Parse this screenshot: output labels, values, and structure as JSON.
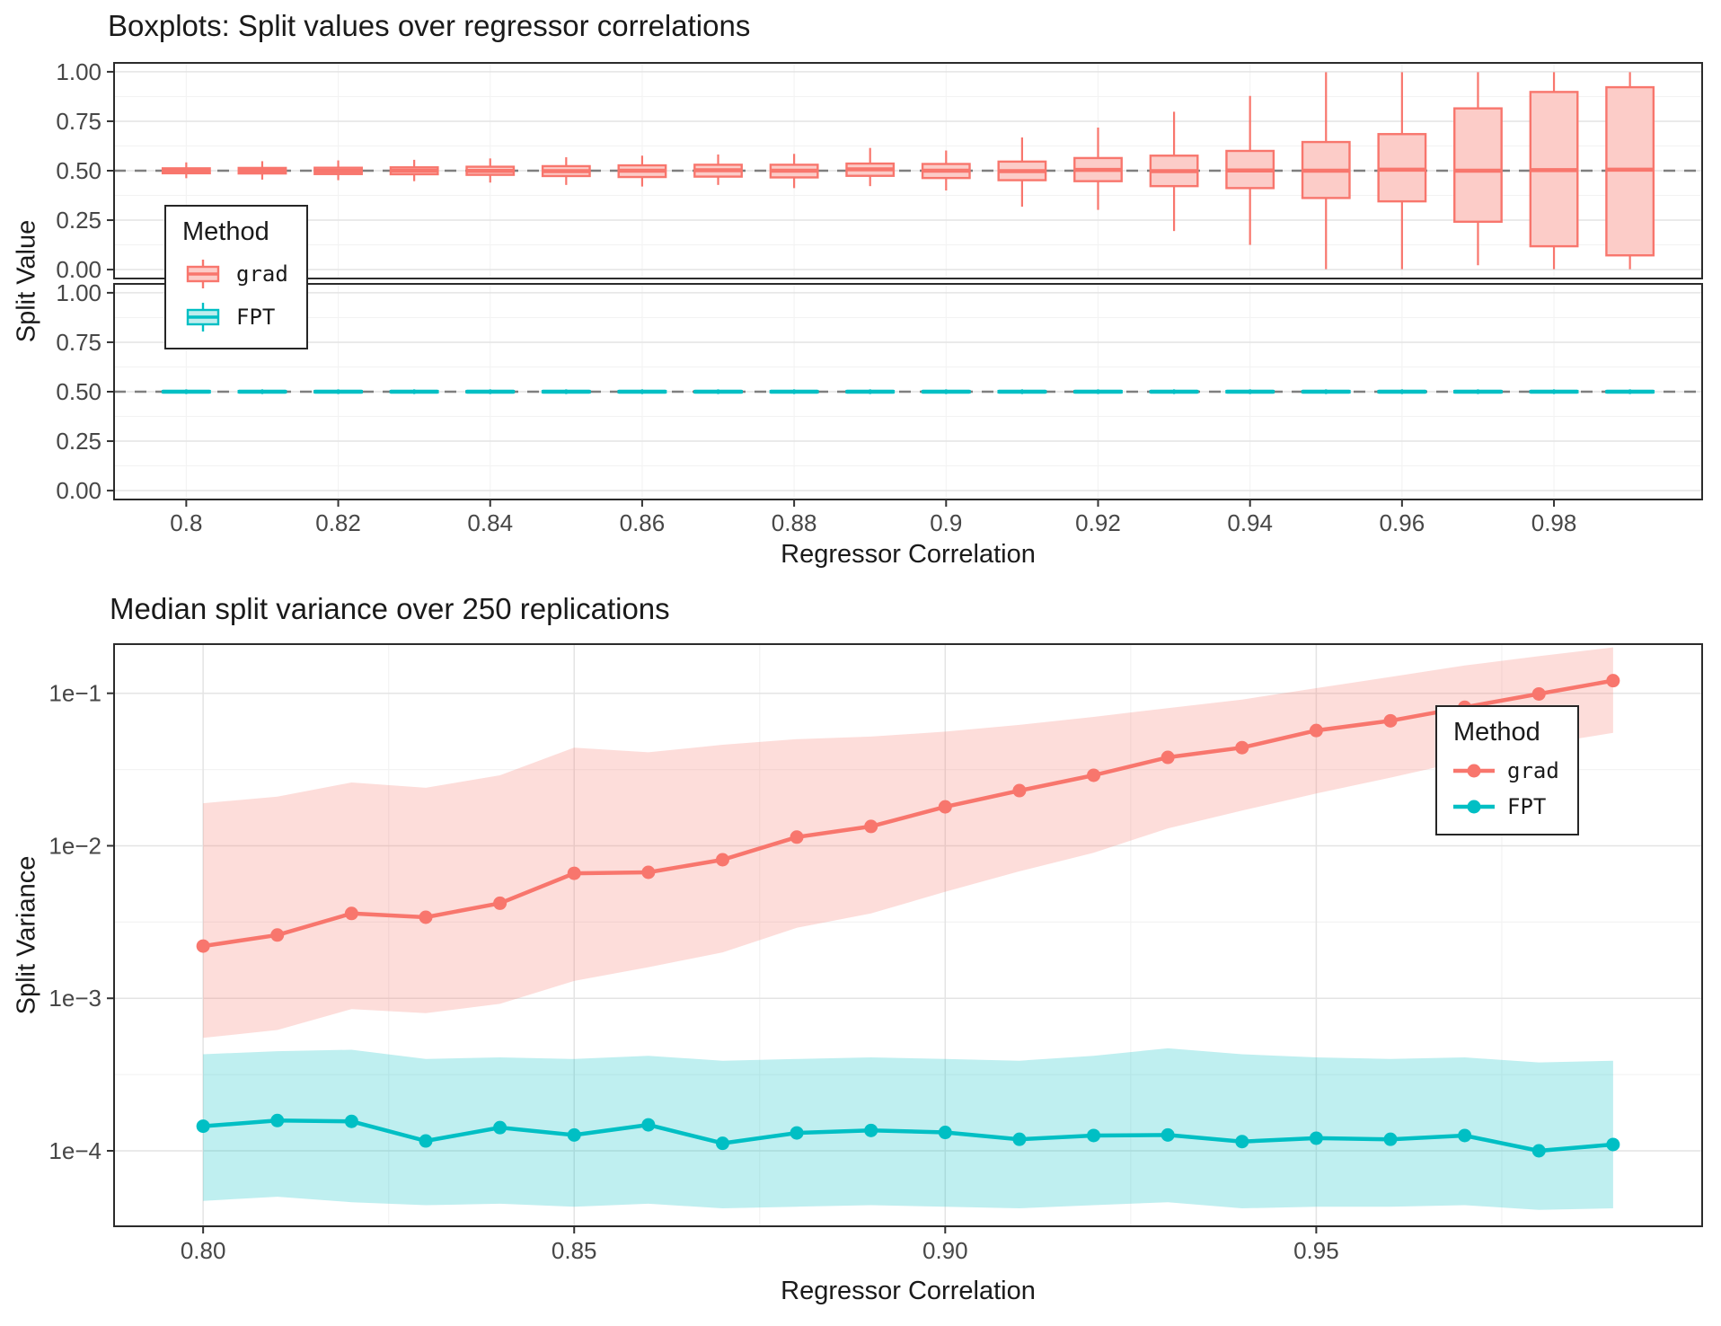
{
  "colors": {
    "grad": "#F8766D",
    "grad_fill": "#FCCCC8",
    "fpt": "#00BFC4",
    "fpt_fill": "#BFEDEE",
    "ref_line": "#7f7f7f",
    "grid_major": "#E4E4E4",
    "grid_minor": "#F3F3F3",
    "panel_border": "#2b2b2b",
    "axis_text": "#474747",
    "title_text": "#1a1a1a"
  },
  "chart_data": [
    {
      "type": "boxplot",
      "title": "Boxplots: Split values over regressor correlations",
      "xlabel": "Regressor Correlation",
      "ylabel": "Split Value",
      "legend": {
        "title": "Method",
        "items": [
          {
            "label": "grad"
          },
          {
            "label": "FPT"
          }
        ]
      },
      "reference_line": 0.5,
      "xlim": [
        0.7905,
        0.9995
      ],
      "ylim": [
        -0.045,
        1.045
      ],
      "box_width": 0.0062,
      "x_ticks": [
        0.8,
        0.82,
        0.84,
        0.86,
        0.88,
        0.9,
        0.92,
        0.94,
        0.96,
        0.98
      ],
      "x_tick_labels": [
        "0.8",
        "0.82",
        "0.84",
        "0.86",
        "0.88",
        "0.9",
        "0.92",
        "0.94",
        "0.96",
        "0.98"
      ],
      "y_ticks": [
        0,
        0.25,
        0.5,
        0.75,
        1
      ],
      "y_tick_labels": [
        "0.00",
        "0.25",
        "0.50",
        "0.75",
        "1.00"
      ],
      "y_minor": [
        0.125,
        0.375,
        0.625,
        0.875
      ],
      "x": [
        0.8,
        0.81,
        0.82,
        0.83,
        0.84,
        0.85,
        0.86,
        0.87,
        0.88,
        0.89,
        0.9,
        0.91,
        0.92,
        0.93,
        0.94,
        0.95,
        0.96,
        0.97,
        0.98,
        0.99
      ],
      "facets": [
        {
          "name": "grad",
          "color_key": "grad",
          "boxes": [
            [
              0.462,
              0.487,
              0.5,
              0.512,
              0.542
            ],
            [
              0.455,
              0.486,
              0.501,
              0.514,
              0.548
            ],
            [
              0.452,
              0.483,
              0.499,
              0.515,
              0.552
            ],
            [
              0.447,
              0.482,
              0.5,
              0.517,
              0.555
            ],
            [
              0.44,
              0.479,
              0.499,
              0.52,
              0.562
            ],
            [
              0.428,
              0.473,
              0.498,
              0.523,
              0.568
            ],
            [
              0.42,
              0.468,
              0.5,
              0.527,
              0.576
            ],
            [
              0.428,
              0.47,
              0.502,
              0.53,
              0.582
            ],
            [
              0.412,
              0.466,
              0.5,
              0.53,
              0.585
            ],
            [
              0.422,
              0.474,
              0.507,
              0.536,
              0.615
            ],
            [
              0.4,
              0.463,
              0.5,
              0.534,
              0.602
            ],
            [
              0.318,
              0.452,
              0.498,
              0.546,
              0.668
            ],
            [
              0.302,
              0.447,
              0.504,
              0.564,
              0.718
            ],
            [
              0.195,
              0.422,
              0.498,
              0.576,
              0.798
            ],
            [
              0.125,
              0.412,
              0.501,
              0.6,
              0.878
            ],
            [
              0.002,
              0.362,
              0.5,
              0.645,
              0.998
            ],
            [
              0.002,
              0.345,
              0.505,
              0.685,
              0.998
            ],
            [
              0.022,
              0.242,
              0.5,
              0.815,
              0.998
            ],
            [
              0.002,
              0.118,
              0.503,
              0.898,
              0.998
            ],
            [
              0.002,
              0.072,
              0.505,
              0.922,
              0.998
            ]
          ]
        },
        {
          "name": "FPT",
          "color_key": "fpt",
          "boxes": [
            [
              0.488,
              0.4965,
              0.5,
              0.5035,
              0.512
            ],
            [
              0.488,
              0.4965,
              0.5,
              0.5035,
              0.512
            ],
            [
              0.488,
              0.4965,
              0.5,
              0.5035,
              0.512
            ],
            [
              0.488,
              0.4965,
              0.5,
              0.5035,
              0.512
            ],
            [
              0.488,
              0.4965,
              0.5,
              0.5035,
              0.512
            ],
            [
              0.488,
              0.4965,
              0.5,
              0.5035,
              0.512
            ],
            [
              0.488,
              0.4965,
              0.5,
              0.5035,
              0.512
            ],
            [
              0.488,
              0.4965,
              0.5,
              0.5035,
              0.512
            ],
            [
              0.488,
              0.4965,
              0.5,
              0.5035,
              0.512
            ],
            [
              0.488,
              0.4965,
              0.5,
              0.5035,
              0.512
            ],
            [
              0.488,
              0.4965,
              0.5,
              0.5035,
              0.512
            ],
            [
              0.488,
              0.4965,
              0.5,
              0.5035,
              0.512
            ],
            [
              0.488,
              0.4965,
              0.5,
              0.5035,
              0.512
            ],
            [
              0.488,
              0.4965,
              0.5,
              0.5035,
              0.512
            ],
            [
              0.488,
              0.4965,
              0.5,
              0.5035,
              0.512
            ],
            [
              0.488,
              0.4965,
              0.5,
              0.5035,
              0.512
            ],
            [
              0.488,
              0.4965,
              0.5,
              0.5035,
              0.512
            ],
            [
              0.488,
              0.4965,
              0.5,
              0.5035,
              0.512
            ],
            [
              0.488,
              0.4965,
              0.5,
              0.5035,
              0.512
            ],
            [
              0.488,
              0.4965,
              0.5,
              0.5035,
              0.512
            ]
          ]
        }
      ]
    },
    {
      "type": "line",
      "title": "Median split variance over 250 replications",
      "xlabel": "Regressor Correlation",
      "ylabel": "Split Variance",
      "legend": {
        "title": "Method",
        "items": [
          {
            "label": "grad"
          },
          {
            "label": "FPT"
          }
        ]
      },
      "y_scale": "log10",
      "xlim": [
        0.788,
        1.002
      ],
      "ylim": [
        3.2e-05,
        0.21
      ],
      "x_ticks": [
        0.8,
        0.85,
        0.9,
        0.95
      ],
      "x_tick_labels": [
        "0.80",
        "0.85",
        "0.90",
        "0.95"
      ],
      "x_minor": [
        0.825,
        0.875,
        0.925,
        0.975
      ],
      "y_ticks": [
        0.1,
        0.01,
        0.001,
        0.0001
      ],
      "y_tick_labels": [
        "1e−1",
        "1e−2",
        "1e−3",
        "1e−4"
      ],
      "y_minor": [
        0.0316,
        0.00316,
        0.000316
      ],
      "x": [
        0.8,
        0.81,
        0.82,
        0.83,
        0.84,
        0.85,
        0.86,
        0.87,
        0.88,
        0.89,
        0.9,
        0.91,
        0.92,
        0.93,
        0.94,
        0.95,
        0.96,
        0.97,
        0.98,
        0.99
      ],
      "series": [
        {
          "name": "grad",
          "color_key": "grad",
          "values": [
            0.0022,
            0.0026,
            0.0036,
            0.0034,
            0.0042,
            0.0066,
            0.0067,
            0.0081,
            0.0114,
            0.0134,
            0.018,
            0.023,
            0.029,
            0.038,
            0.044,
            0.057,
            0.066,
            0.081,
            0.099,
            0.121
          ],
          "lower": [
            0.00055,
            0.00062,
            0.00085,
            0.0008,
            0.00092,
            0.0013,
            0.0016,
            0.002,
            0.0029,
            0.0036,
            0.005,
            0.0068,
            0.009,
            0.013,
            0.017,
            0.022,
            0.028,
            0.036,
            0.046,
            0.055
          ],
          "upper": [
            0.019,
            0.021,
            0.026,
            0.024,
            0.029,
            0.044,
            0.041,
            0.046,
            0.05,
            0.052,
            0.056,
            0.062,
            0.07,
            0.08,
            0.091,
            0.108,
            0.128,
            0.152,
            0.175,
            0.2
          ]
        },
        {
          "name": "FPT",
          "color_key": "fpt",
          "values": [
            0.000145,
            0.000158,
            0.000156,
            0.000116,
            0.000142,
            0.000127,
            0.000148,
            0.000112,
            0.000131,
            0.000136,
            0.000132,
            0.000119,
            0.000126,
            0.000127,
            0.000115,
            0.000121,
            0.000119,
            0.000126,
            0.0001,
            0.00011
          ],
          "lower": [
            4.7e-05,
            5e-05,
            4.6e-05,
            4.4e-05,
            4.5e-05,
            4.3e-05,
            4.5e-05,
            4.2e-05,
            4.3e-05,
            4.4e-05,
            4.3e-05,
            4.2e-05,
            4.4e-05,
            4.6e-05,
            4.2e-05,
            4.3e-05,
            4.3e-05,
            4.4e-05,
            4.1e-05,
            4.2e-05
          ],
          "upper": [
            0.00043,
            0.00045,
            0.00046,
            0.0004,
            0.00041,
            0.0004,
            0.00042,
            0.00039,
            0.0004,
            0.00041,
            0.0004,
            0.00039,
            0.00042,
            0.00047,
            0.00043,
            0.00041,
            0.0004,
            0.00041,
            0.00038,
            0.00039
          ]
        }
      ]
    }
  ]
}
